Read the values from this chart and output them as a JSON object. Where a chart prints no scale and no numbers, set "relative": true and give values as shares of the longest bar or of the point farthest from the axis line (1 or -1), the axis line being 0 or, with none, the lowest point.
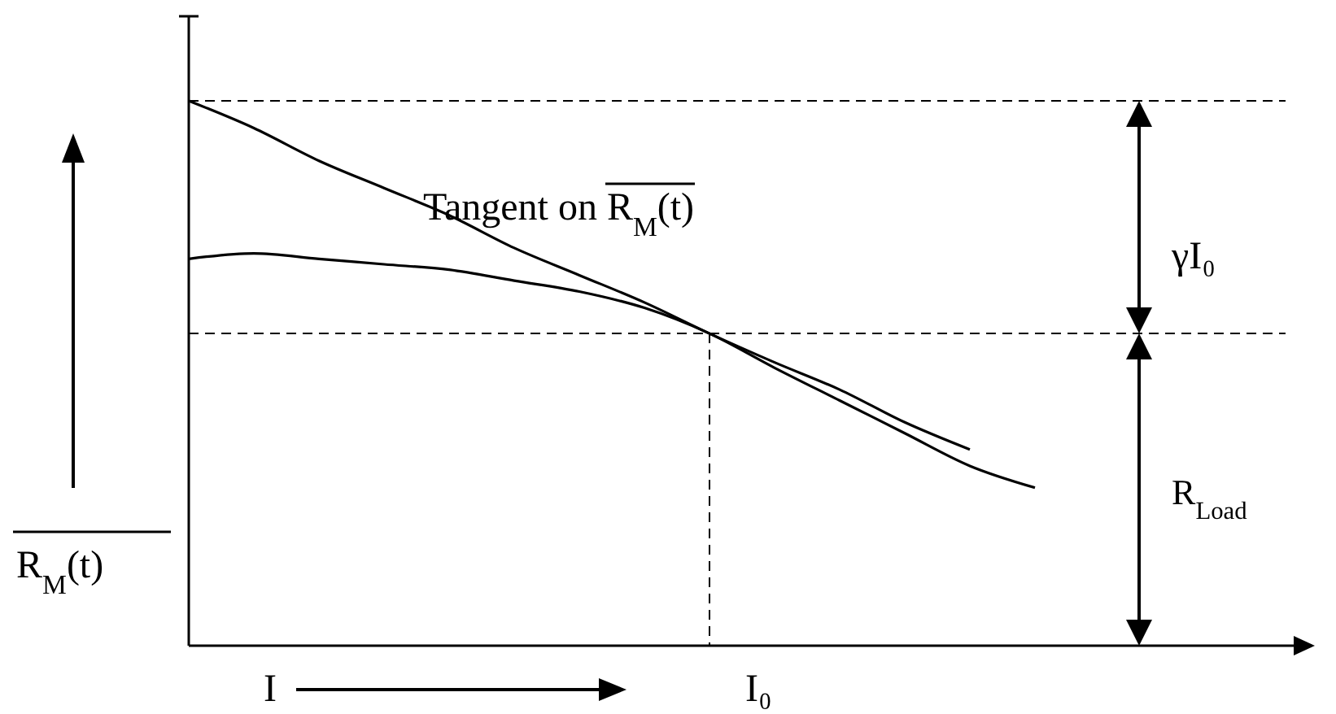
{
  "chart_data": {
    "type": "line",
    "relative": true,
    "xlabel": "I",
    "ylabel": "R$_{M}$(t)",
    "categories": [
      null,
      null,
      null,
      null,
      null,
      null,
      null,
      null,
      null,
      null,
      null,
      null,
      null,
      null
    ],
    "series": [
      {
        "color": "#000000",
        "values": [
          0.71,
          0.72,
          0.71,
          0.7,
          0.69,
          0.67,
          0.65,
          0.62,
          0.573,
          0.51,
          0.45,
          0.39,
          0.33,
          0.29
        ]
      },
      {
        "color": "#000000",
        "values": [
          1,
          0.95,
          0.89,
          0.84,
          0.79,
          0.73,
          0.68,
          0.63,
          0.573,
          0.52,
          0.47,
          0.41,
          0.36,
          null
        ]
      }
    ],
    "ref_lines": [
      {
        "axis": "y",
        "value": 1,
        "line_style": "dashed"
      },
      {
        "axis": "y",
        "value": 0.573,
        "line_style": "dashed"
      }
    ],
    "annotations": [
      "Tangent on R$_{M}$(t)",
      "γI₀",
      "R$_{Load}$",
      "I₀"
    ],
    "marker": "none",
    "line_style": "solid"
  }
}
